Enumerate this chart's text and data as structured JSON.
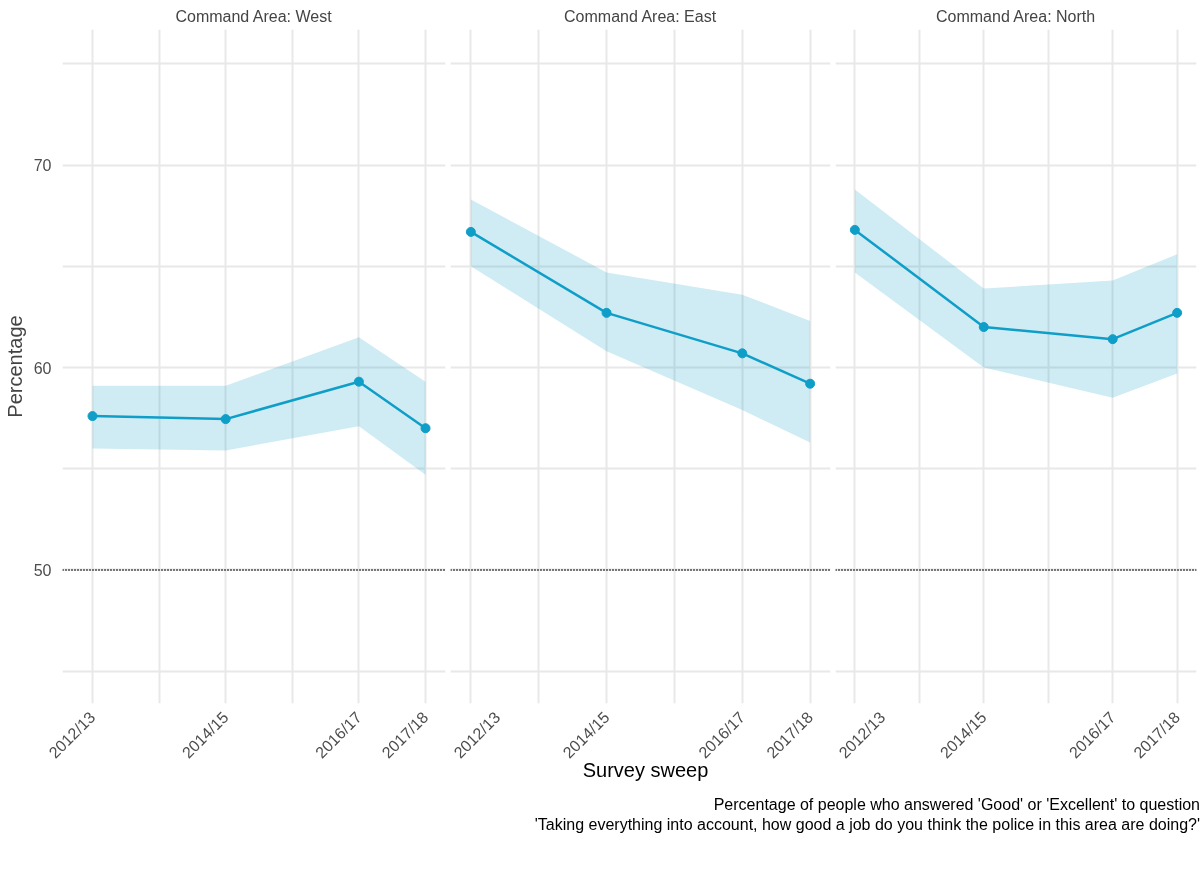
{
  "chart_data": [
    {
      "type": "line",
      "title": "Command Area: West",
      "ylabel": "Percentage",
      "categories": [
        "2012/13",
        null,
        "2014/15",
        null,
        "2016/17",
        "2017/18"
      ],
      "ylim": [
        43.4,
        76.7
      ],
      "yticks": [
        {
          "value": 45,
          "label": null
        },
        50,
        {
          "value": 55,
          "label": null
        },
        60,
        {
          "value": 65,
          "label": null
        },
        70,
        {
          "value": 75,
          "label": null
        }
      ],
      "series": [
        {
          "color": "#0f9ec8",
          "values": [
            57.6,
            null,
            57.45,
            null,
            59.3,
            57.0
          ],
          "lower": [
            56.0,
            null,
            55.9,
            null,
            57.1,
            54.7
          ],
          "upper": [
            59.1,
            null,
            59.1,
            null,
            61.5,
            59.3
          ]
        }
      ],
      "ref_lines": [
        {
          "axis": "y",
          "value": 50,
          "color": "#000000",
          "line_style": "dotted"
        }
      ],
      "marker": "circle",
      "line_style": "solid",
      "grid": true
    },
    {
      "type": "line",
      "title": "Command Area: East",
      "xlabel": "Survey sweep",
      "categories": [
        "2012/13",
        null,
        "2014/15",
        null,
        "2016/17",
        "2017/18"
      ],
      "ylim": [
        43.4,
        76.7
      ],
      "yticks": [
        {
          "value": 45,
          "label": null
        },
        50,
        {
          "value": 55,
          "label": null
        },
        60,
        {
          "value": 65,
          "label": null
        },
        70,
        {
          "value": 75,
          "label": null
        }
      ],
      "series": [
        {
          "color": "#0f9ec8",
          "values": [
            66.7,
            null,
            62.7,
            null,
            60.7,
            59.2
          ],
          "lower": [
            65.0,
            null,
            60.8,
            null,
            57.9,
            56.3
          ],
          "upper": [
            68.3,
            null,
            64.7,
            null,
            63.6,
            62.3
          ]
        }
      ],
      "ref_lines": [
        {
          "axis": "y",
          "value": 50,
          "color": "#000000",
          "line_style": "dotted"
        }
      ],
      "marker": "circle",
      "line_style": "solid",
      "grid": true,
      "tick_labels": "x"
    },
    {
      "type": "line",
      "title": "Command Area: North",
      "categories": [
        "2012/13",
        null,
        "2014/15",
        null,
        "2016/17",
        "2017/18"
      ],
      "ylim": [
        43.4,
        76.7
      ],
      "yticks": [
        {
          "value": 45,
          "label": null
        },
        50,
        {
          "value": 55,
          "label": null
        },
        60,
        {
          "value": 65,
          "label": null
        },
        70,
        {
          "value": 75,
          "label": null
        }
      ],
      "series": [
        {
          "color": "#0f9ec8",
          "values": [
            66.8,
            null,
            62.0,
            null,
            61.4,
            62.7
          ],
          "lower": [
            64.7,
            null,
            60.0,
            null,
            58.5,
            59.7
          ],
          "upper": [
            68.8,
            null,
            63.9,
            null,
            64.3,
            65.6
          ]
        }
      ],
      "ref_lines": [
        {
          "axis": "y",
          "value": 50,
          "color": "#000000",
          "line_style": "dotted"
        }
      ],
      "marker": "circle",
      "line_style": "solid",
      "grid": true,
      "tick_labels": "x",
      "annotations": [
        "Percentage of people who answered 'Good' or 'Excellent' to question",
        "'Taking everything into account, how good a job do you think the police in this area are doing?'"
      ]
    }
  ]
}
